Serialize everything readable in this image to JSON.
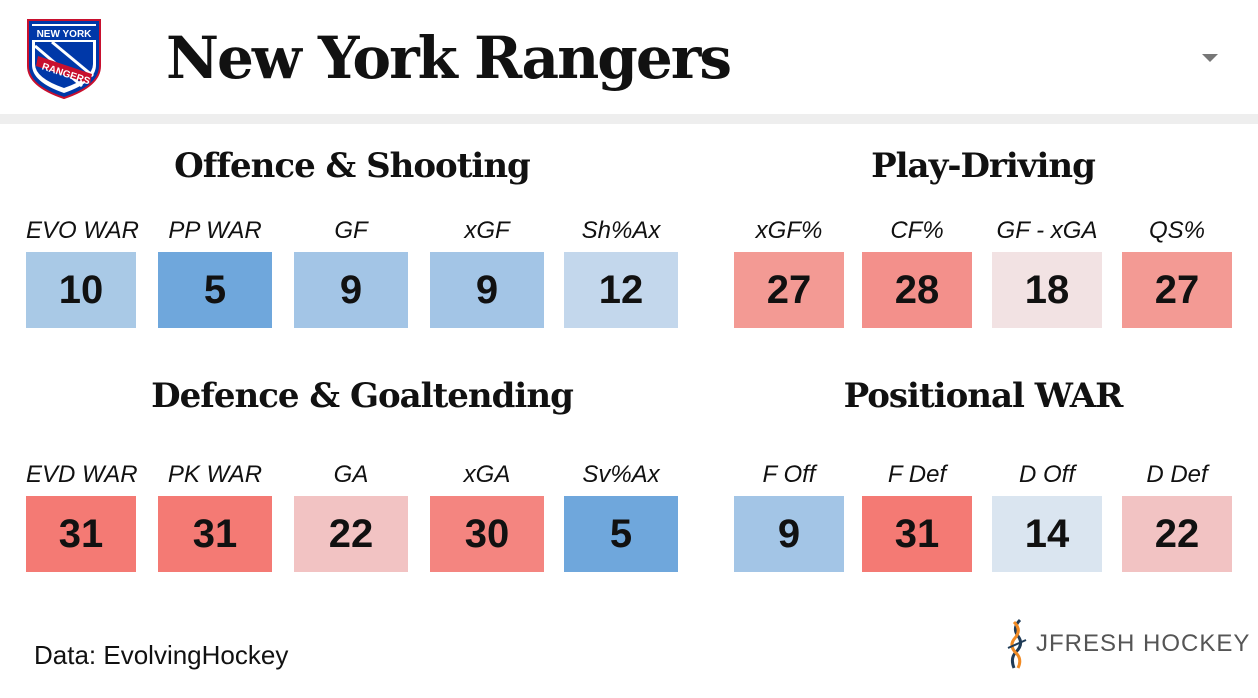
{
  "header": {
    "logo_text_top": "NEW YORK",
    "logo_text_bottom": "RANGERS",
    "title": "New York Rangers",
    "dropdown_icon": "caret-down-icon"
  },
  "sections": [
    {
      "title": "Offence & Shooting",
      "metrics": [
        {
          "label": "EVO WAR",
          "value": "10",
          "color": "#a9c9e6"
        },
        {
          "label": "PP WAR",
          "value": "5",
          "color": "#6fa7dc"
        },
        {
          "label": "GF",
          "value": "9",
          "color": "#a3c5e6"
        },
        {
          "label": "xGF",
          "value": "9",
          "color": "#a3c5e6"
        },
        {
          "label": "Sh%Ax",
          "value": "12",
          "color": "#c3d7ec"
        }
      ]
    },
    {
      "title": "Play-Driving",
      "metrics": [
        {
          "label": "xGF%",
          "value": "27",
          "color": "#f39a94"
        },
        {
          "label": "CF%",
          "value": "28",
          "color": "#f3908b"
        },
        {
          "label": "GF - xGA",
          "value": "18",
          "color": "#f2e2e3"
        },
        {
          "label": "QS%",
          "value": "27",
          "color": "#f39a94"
        }
      ]
    },
    {
      "title": "Defence & Goaltending",
      "metrics": [
        {
          "label": "EVD WAR",
          "value": "31",
          "color": "#f47a74"
        },
        {
          "label": "PK WAR",
          "value": "31",
          "color": "#f47a74"
        },
        {
          "label": "GA",
          "value": "22",
          "color": "#f2c3c3"
        },
        {
          "label": "xGA",
          "value": "30",
          "color": "#f48580"
        },
        {
          "label": "Sv%Ax",
          "value": "5",
          "color": "#6fa7dc"
        }
      ]
    },
    {
      "title": "Positional WAR",
      "metrics": [
        {
          "label": "F Off",
          "value": "9",
          "color": "#a3c5e6"
        },
        {
          "label": "F Def",
          "value": "31",
          "color": "#f47a74"
        },
        {
          "label": "D Off",
          "value": "14",
          "color": "#dae5f0"
        },
        {
          "label": "D Def",
          "value": "22",
          "color": "#f2c3c3"
        }
      ]
    }
  ],
  "footer": {
    "source": "Data: EvolvingHockey",
    "brand_icon": "jfresh-logo-icon",
    "brand_name": "JFRESH HOCKEY"
  }
}
